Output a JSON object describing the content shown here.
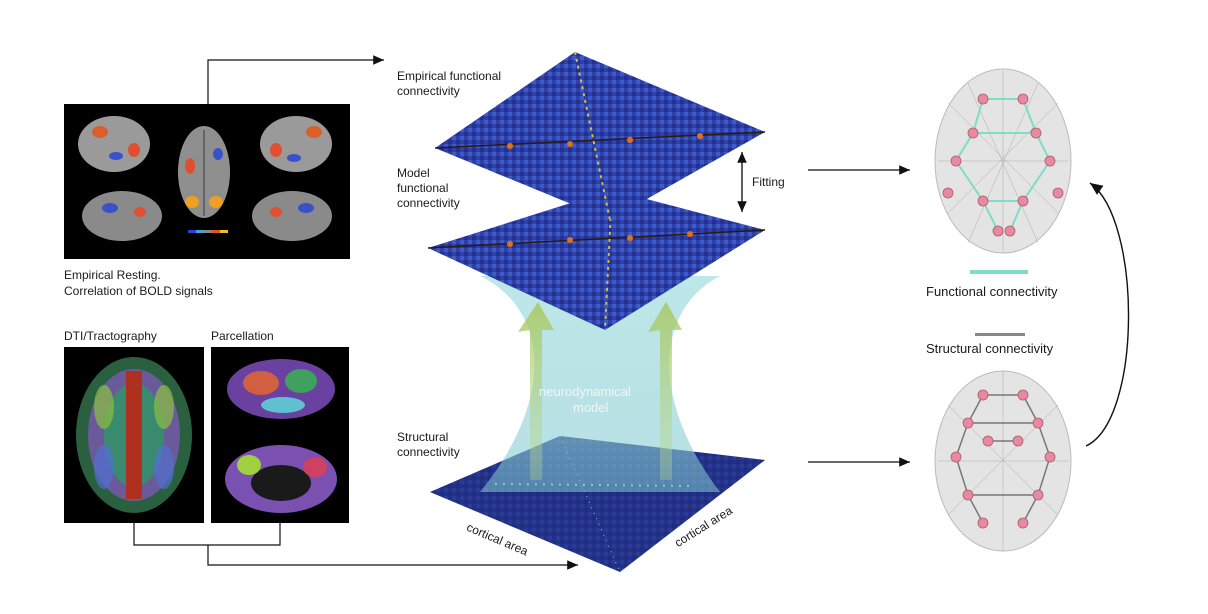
{
  "left": {
    "resting_caption_line1": "Empirical Resting.",
    "resting_caption_line2": "Correlation of BOLD signals",
    "dti_label": "DTI/Tractography",
    "parcellation_label": "Parcellation"
  },
  "center": {
    "empirical_fc_line1": "Empirical functional",
    "empirical_fc_line2": "connectivity",
    "model_fc_line1": "Model",
    "model_fc_line2": "functional",
    "model_fc_line3": "connectivity",
    "fitting_label": "Fitting",
    "neuro_line1": "neurodynamical",
    "neuro_line2": "model",
    "structural_line1": "Structural",
    "structural_line2": "connectivity",
    "axis_left": "cortical area",
    "axis_right": "cortical area"
  },
  "right": {
    "functional_label": "Functional connectivity",
    "structural_label": "Structural connectivity",
    "functional_color": "#7fdcc6",
    "structural_color": "#888888",
    "node_color": "#e58aa0"
  }
}
